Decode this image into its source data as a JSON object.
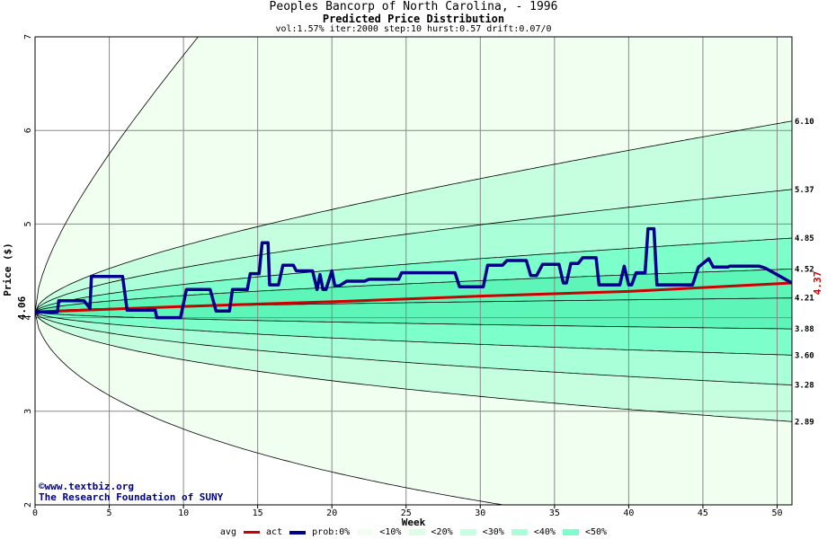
{
  "chart_data": {
    "type": "area",
    "title": "Peoples Bancorp of North Carolina,  - 1996",
    "subtitle": "Predicted Price Distribution",
    "params": "vol:1.57% iter:2000 step:10 hurst:0.57 drift:0.07/0",
    "xlabel": "Week",
    "ylabel": "Price ($)",
    "xlim": [
      0,
      51
    ],
    "ylim": [
      2,
      7
    ],
    "x_ticks": [
      "0",
      "5",
      "10",
      "15",
      "20",
      "25",
      "30",
      "35",
      "40",
      "45",
      "50"
    ],
    "y_ticks": [
      "2",
      "3",
      "4",
      "5",
      "6",
      "7"
    ],
    "start_price": "4.06",
    "current_price": "4.37",
    "end_labels": [
      "6.10",
      "5.37",
      "4.85",
      "4.52",
      "4.21",
      "3.88",
      "3.60",
      "3.28",
      "2.89"
    ],
    "band_colors": {
      "b0": "#f1fff1",
      "b10": "#dbffe6",
      "b20": "#c6ffe0",
      "b30": "#a8ffd8",
      "b40": "#7dffcb",
      "b50": "#5df5b8"
    },
    "series": [
      {
        "name": "avg",
        "color": "#cc0000",
        "x": [
          0,
          10,
          20,
          30,
          40,
          51
        ],
        "values": [
          4.06,
          4.12,
          4.17,
          4.23,
          4.28,
          4.37
        ]
      },
      {
        "name": "act",
        "color": "#00008b",
        "x": [
          0,
          1.5,
          1.6,
          3.3,
          3.7,
          3.8,
          5.9,
          6.2,
          8.1,
          8.2,
          9.8,
          10.2,
          11.8,
          12.2,
          13.1,
          13.3,
          14.3,
          14.5,
          15.1,
          15.3,
          15.7,
          15.8,
          16.4,
          16.7,
          17.4,
          17.6,
          18.7,
          19.0,
          19.2,
          19.4,
          19.6,
          20.0,
          20.2,
          20.5,
          21.0,
          21.3,
          22.2,
          22.5,
          24.5,
          24.7,
          28.3,
          28.6,
          30.2,
          30.5,
          31.5,
          31.8,
          33.1,
          33.4,
          33.8,
          34.2,
          35.3,
          35.6,
          35.8,
          36.1,
          36.6,
          36.9,
          37.8,
          38.0,
          39.4,
          39.7,
          40.0,
          40.2,
          40.5,
          41.1,
          41.3,
          41.7,
          41.9,
          44.3,
          44.7,
          45.4,
          45.7,
          46.7,
          46.8,
          48.8,
          49.2,
          51
        ],
        "values": [
          4.06,
          4.06,
          4.18,
          4.18,
          4.1,
          4.44,
          4.44,
          4.08,
          4.08,
          4.0,
          4.0,
          4.3,
          4.3,
          4.07,
          4.07,
          4.3,
          4.3,
          4.47,
          4.47,
          4.8,
          4.8,
          4.35,
          4.35,
          4.56,
          4.56,
          4.5,
          4.5,
          4.3,
          4.46,
          4.3,
          4.3,
          4.5,
          4.34,
          4.34,
          4.39,
          4.39,
          4.39,
          4.41,
          4.41,
          4.48,
          4.48,
          4.33,
          4.33,
          4.56,
          4.56,
          4.61,
          4.61,
          4.45,
          4.45,
          4.57,
          4.57,
          4.37,
          4.37,
          4.58,
          4.58,
          4.64,
          4.64,
          4.35,
          4.35,
          4.55,
          4.35,
          4.35,
          4.48,
          4.48,
          4.95,
          4.95,
          4.35,
          4.35,
          4.54,
          4.63,
          4.54,
          4.54,
          4.55,
          4.55,
          4.53,
          4.37
        ]
      }
    ],
    "legend": [
      "avg",
      "act",
      "prob:0%",
      "<10%",
      "<20%",
      "<30%",
      "<40%",
      "<50%"
    ],
    "credit": {
      "line1": "©www.textbiz.org",
      "line2": "The Research Foundation of SUNY"
    }
  }
}
